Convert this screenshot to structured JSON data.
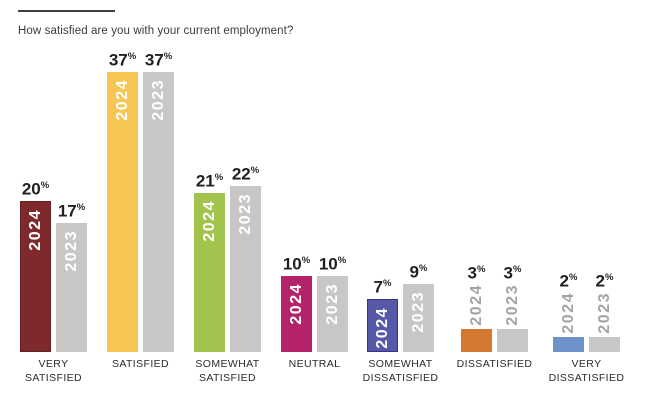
{
  "page": {
    "background": "#ffffff",
    "question": "How satisfied are you with your current employment?"
  },
  "colors": {
    "top_rule": "#3f3f41",
    "question_text": "#3c3c3c",
    "value_label_text": "#231f20",
    "category_label_text": "#2b2a2a",
    "year_label_inside": "#ffffff",
    "year_label_outside": "#a6a4a5",
    "bar_2023_gray": "#c8c7c5"
  },
  "chart_data": {
    "type": "bar",
    "title": "How satisfied are you with your current employment?",
    "unit": "%",
    "grid": false,
    "ylim": [
      0,
      40
    ],
    "legend_position": "labels inside or above bars",
    "categories": [
      "Very Satisfied",
      "Satisfied",
      "Somewhat Satisfied",
      "Neutral",
      "Somewhat Dissatisfied",
      "Dissatisfied",
      "Very Dissatisfied"
    ],
    "category_labels": [
      [
        "VERY",
        "SATISFIED"
      ],
      [
        "SATISFIED"
      ],
      [
        "SOMEWHAT",
        "SATISFIED"
      ],
      [
        "NEUTRAL"
      ],
      [
        "SOMEWHAT",
        "DISSATISFIED"
      ],
      [
        "DISSATISFIED"
      ],
      [
        "VERY",
        "DISSATISFIED"
      ]
    ],
    "series": [
      {
        "name": "2024",
        "values": [
          20,
          37,
          21,
          10,
          7,
          3,
          2
        ],
        "colors": [
          "#7e2a2d",
          "#f5c752",
          "#a2c44c",
          "#b42369",
          "#5659a8",
          "#d5782f",
          "#6e93c9"
        ],
        "borders": [
          "#641f23",
          null,
          null,
          null,
          "#34378c",
          null,
          null
        ]
      },
      {
        "name": "2023",
        "values": [
          17,
          37,
          22,
          10,
          9,
          3,
          2
        ],
        "color": "#c8c7c5"
      }
    ]
  }
}
